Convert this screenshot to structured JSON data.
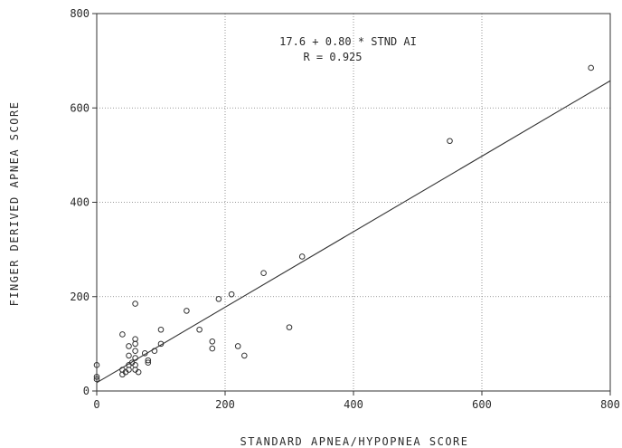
{
  "chart_data": {
    "type": "scatter",
    "title": "",
    "xlabel": "STANDARD APNEA/HYPOPNEA SCORE",
    "ylabel": "FINGER DERIVED APNEA SCORE",
    "xlim": [
      0,
      800
    ],
    "ylim": [
      0,
      800
    ],
    "xticks": [
      0,
      200,
      400,
      600,
      800
    ],
    "yticks": [
      0,
      200,
      400,
      600,
      800
    ],
    "grid": true,
    "annotations": [
      "17.6 + 0.80 * STND AI",
      "R = 0.925"
    ],
    "fit_line": {
      "intercept": 17.6,
      "slope": 0.8
    },
    "points": [
      {
        "x": 0,
        "y": 55
      },
      {
        "x": 0,
        "y": 30
      },
      {
        "x": 0,
        "y": 25
      },
      {
        "x": 40,
        "y": 120
      },
      {
        "x": 40,
        "y": 45
      },
      {
        "x": 40,
        "y": 35
      },
      {
        "x": 45,
        "y": 40
      },
      {
        "x": 50,
        "y": 95
      },
      {
        "x": 50,
        "y": 75
      },
      {
        "x": 50,
        "y": 55
      },
      {
        "x": 50,
        "y": 45
      },
      {
        "x": 55,
        "y": 60
      },
      {
        "x": 60,
        "y": 185
      },
      {
        "x": 60,
        "y": 110
      },
      {
        "x": 60,
        "y": 100
      },
      {
        "x": 60,
        "y": 85
      },
      {
        "x": 60,
        "y": 70
      },
      {
        "x": 60,
        "y": 55
      },
      {
        "x": 60,
        "y": 45
      },
      {
        "x": 65,
        "y": 40
      },
      {
        "x": 75,
        "y": 80
      },
      {
        "x": 80,
        "y": 65
      },
      {
        "x": 80,
        "y": 60
      },
      {
        "x": 90,
        "y": 85
      },
      {
        "x": 100,
        "y": 130
      },
      {
        "x": 100,
        "y": 100
      },
      {
        "x": 140,
        "y": 170
      },
      {
        "x": 160,
        "y": 130
      },
      {
        "x": 180,
        "y": 105
      },
      {
        "x": 180,
        "y": 90
      },
      {
        "x": 190,
        "y": 195
      },
      {
        "x": 210,
        "y": 205
      },
      {
        "x": 220,
        "y": 95
      },
      {
        "x": 230,
        "y": 75
      },
      {
        "x": 260,
        "y": 250
      },
      {
        "x": 300,
        "y": 135
      },
      {
        "x": 320,
        "y": 285
      },
      {
        "x": 550,
        "y": 530
      },
      {
        "x": 770,
        "y": 685
      }
    ]
  }
}
